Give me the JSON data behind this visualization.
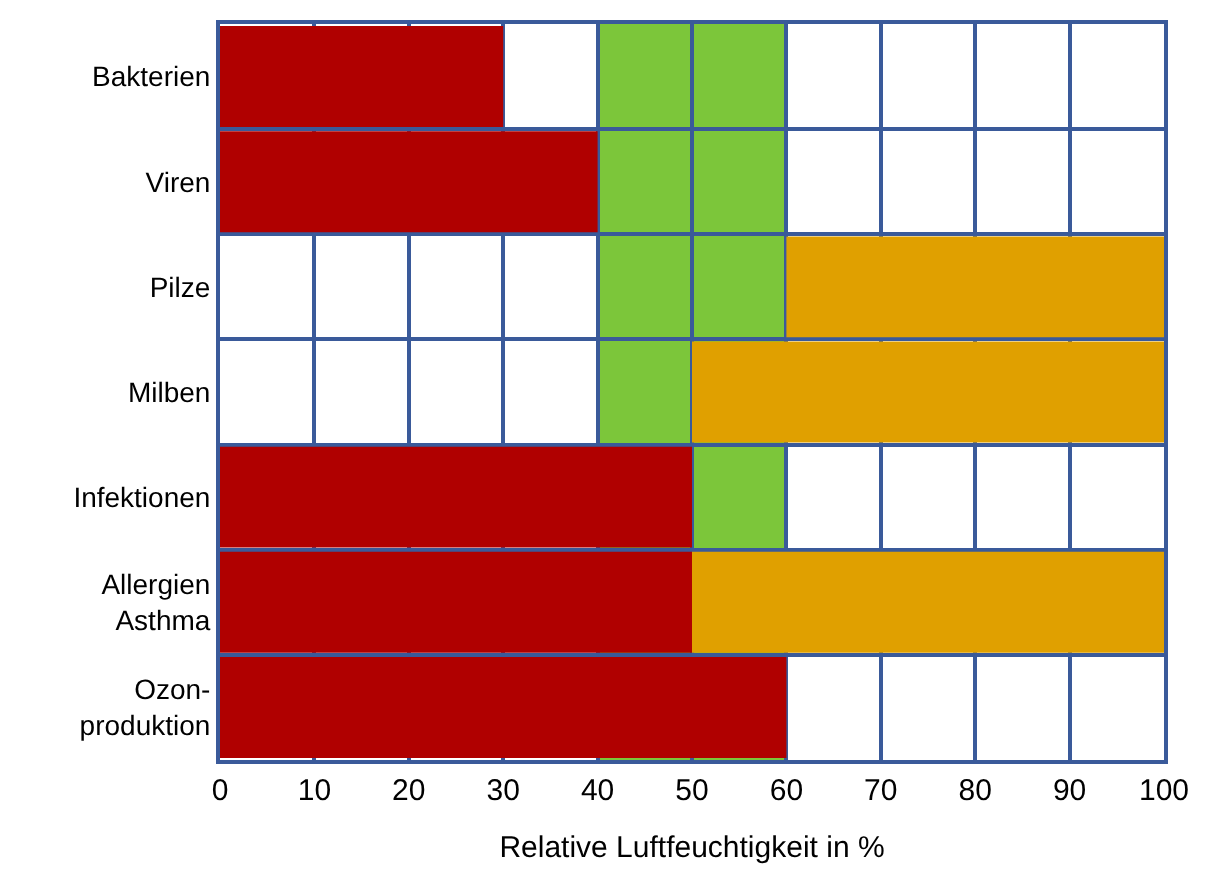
{
  "chart_data": {
    "type": "bar",
    "orientation": "horizontal",
    "xlabel": "Relative Luftfeuchtigkeit in %",
    "categories": [
      "Bakterien",
      "Viren",
      "Pilze",
      "Milben",
      "Infektionen",
      "Allergien\nAsthma",
      "Ozon-\nproduktion"
    ],
    "series": [
      {
        "color": "#b00000",
        "base": [
          0,
          0,
          null,
          null,
          0,
          0,
          0
        ],
        "values": [
          30,
          40,
          null,
          null,
          50,
          50,
          60
        ]
      },
      {
        "color": "#e0a000",
        "base": [
          null,
          null,
          60,
          50,
          null,
          50,
          null
        ],
        "values": [
          null,
          null,
          40,
          50,
          null,
          50,
          null
        ]
      }
    ],
    "bands": [
      {
        "axis": "x",
        "from": 40,
        "to": 60,
        "color": "#7cc63a"
      }
    ],
    "xlim": [
      0,
      100
    ],
    "xticks": [
      0,
      10,
      20,
      30,
      40,
      50,
      60,
      70,
      80,
      90,
      100
    ],
    "grid": true
  }
}
